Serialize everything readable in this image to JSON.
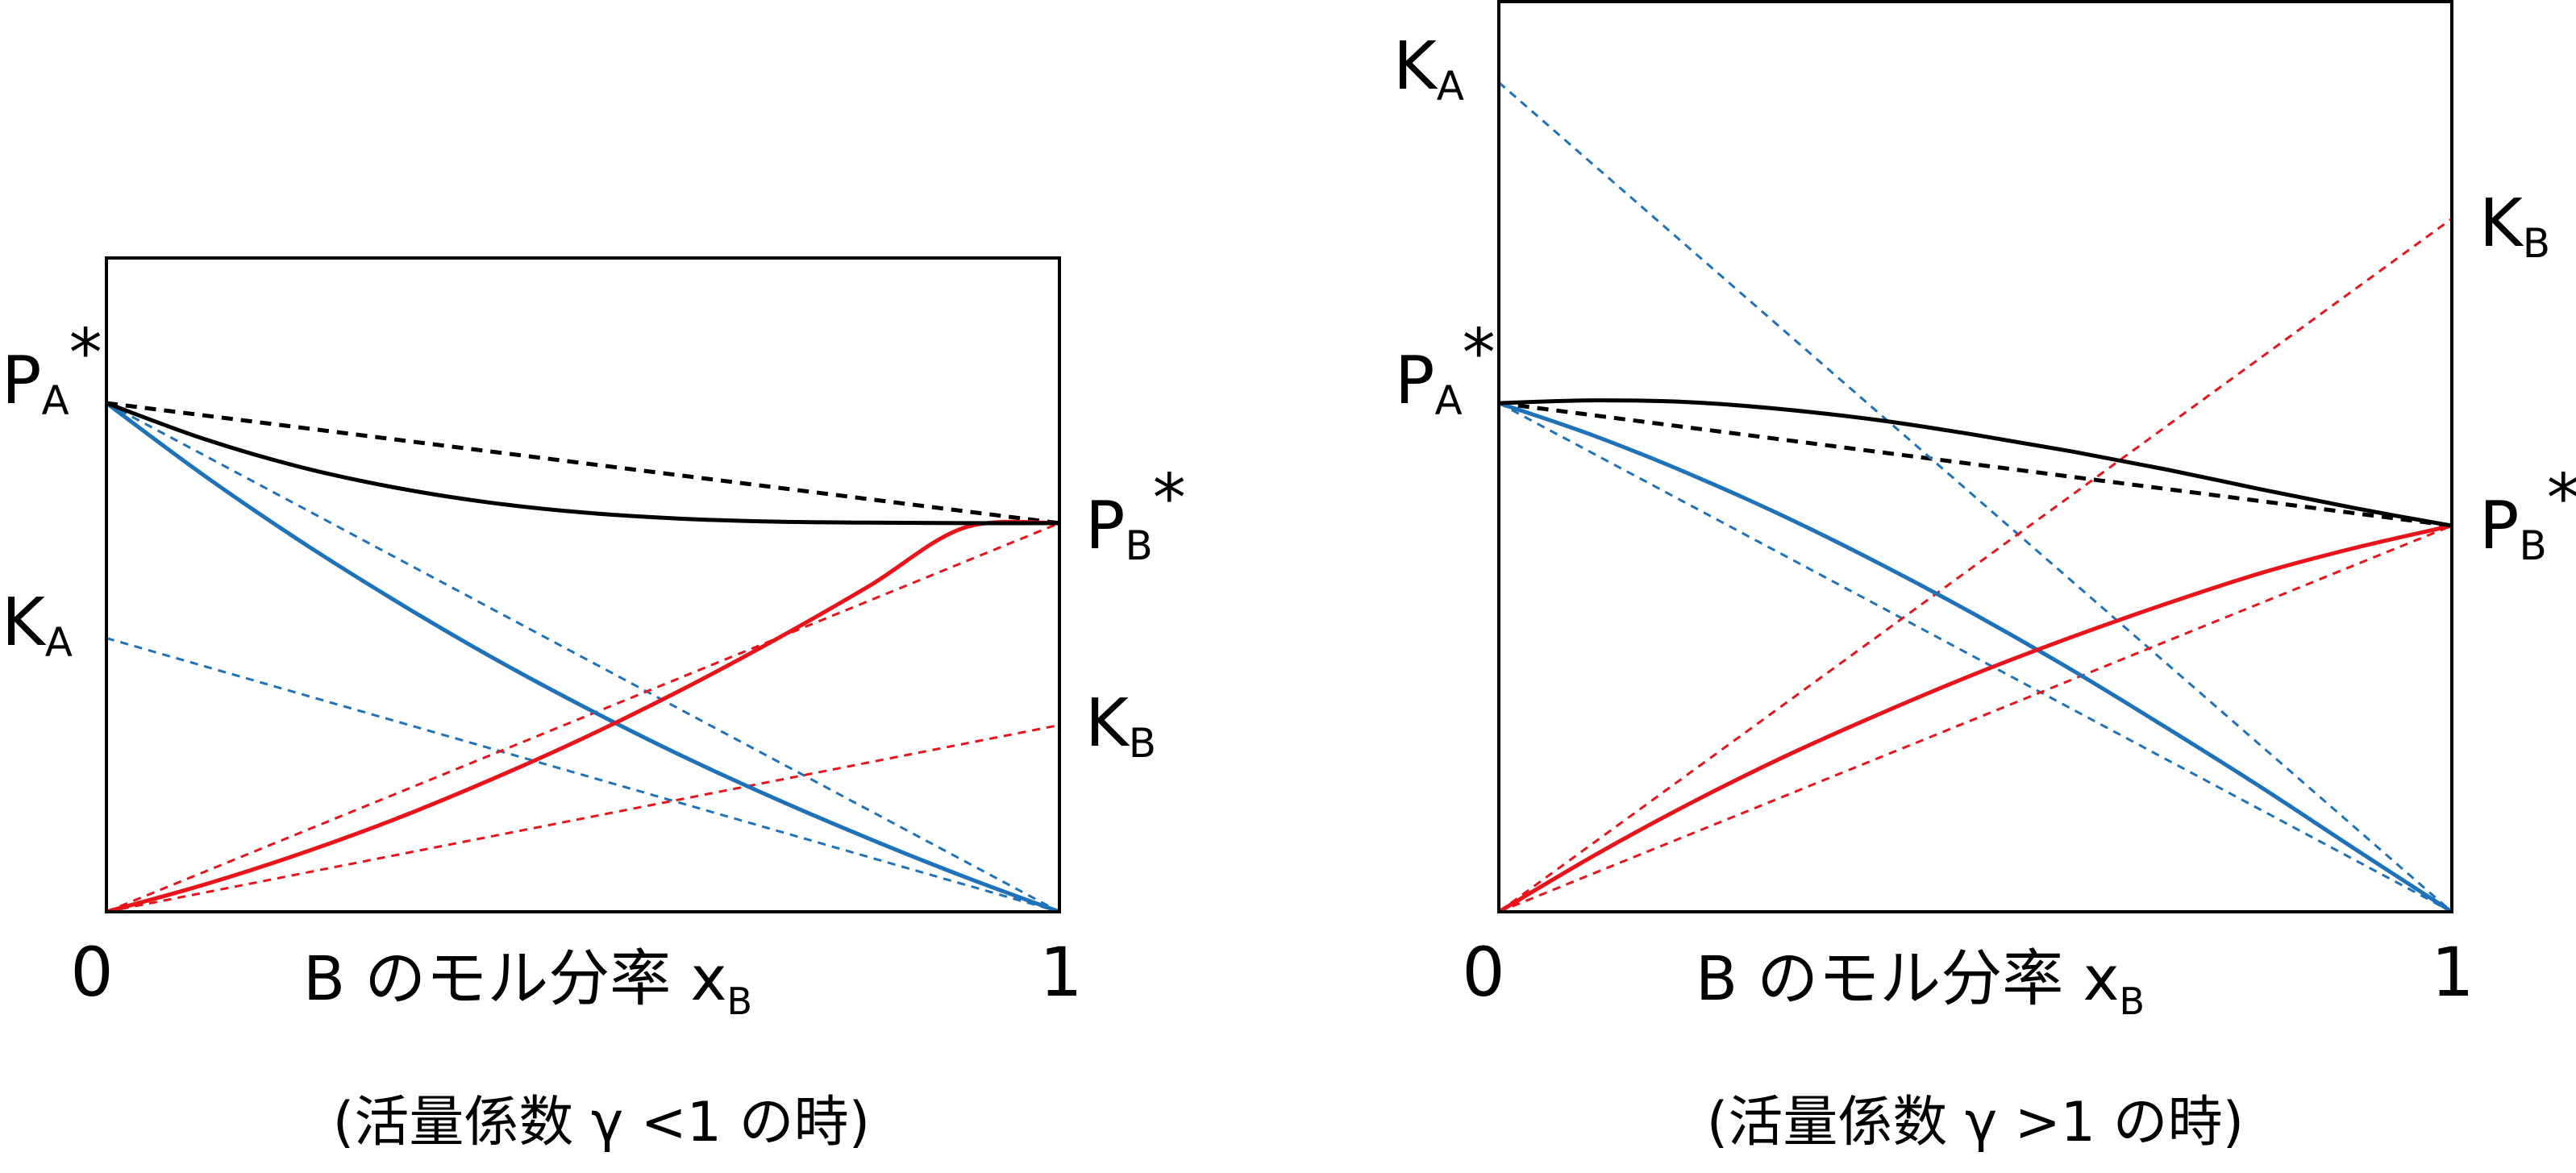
{
  "colors": {
    "total": "#000000",
    "component_a": "#1f72b8",
    "component_b": "#e8141c",
    "frame": "#000000"
  },
  "line_styles": {
    "solid": "actual vapor pressure curve",
    "dashed": "ideal (Raoult) / Henry reference line"
  },
  "panels": [
    {
      "x_label": {
        "main": "B のモル分率 x",
        "sub": "B"
      },
      "x_tick_left": "0",
      "x_tick_right": "1",
      "caption": "(活量係数 γ <1 の時)",
      "labels": {
        "pa_star": {
          "main": "P",
          "sub": "A",
          "sup": "*"
        },
        "pb_star": {
          "main": "P",
          "sub": "B",
          "sup": "*"
        },
        "ka": {
          "main": "K",
          "sub": "A"
        },
        "kb": {
          "main": "K",
          "sub": "B"
        }
      },
      "values": {
        "pa_star": 1.0,
        "pb_star": 0.764,
        "ka": 0.538,
        "kb": 0.367,
        "curve_total": [
          [
            0,
            1.0
          ],
          [
            0.1,
            0.931
          ],
          [
            0.2,
            0.876
          ],
          [
            0.3,
            0.835
          ],
          [
            0.4,
            0.805
          ],
          [
            0.5,
            0.785
          ],
          [
            0.6,
            0.773
          ],
          [
            0.7,
            0.767
          ],
          [
            0.8,
            0.765
          ],
          [
            0.9,
            0.764
          ],
          [
            1.0,
            0.764
          ]
        ],
        "curve_a": [
          [
            0,
            1.0
          ],
          [
            0.1,
            0.861
          ],
          [
            0.2,
            0.733
          ],
          [
            0.3,
            0.615
          ],
          [
            0.4,
            0.505
          ],
          [
            0.5,
            0.404
          ],
          [
            0.6,
            0.31
          ],
          [
            0.7,
            0.224
          ],
          [
            0.8,
            0.144
          ],
          [
            0.9,
            0.069
          ],
          [
            1.0,
            0.0
          ]
        ],
        "curve_b": [
          [
            0,
            0.0
          ],
          [
            0.1,
            0.052
          ],
          [
            0.2,
            0.112
          ],
          [
            0.3,
            0.18
          ],
          [
            0.4,
            0.257
          ],
          [
            0.5,
            0.341
          ],
          [
            0.6,
            0.433
          ],
          [
            0.7,
            0.533
          ],
          [
            0.8,
            0.64
          ],
          [
            0.9,
            0.755
          ],
          [
            1.0,
            0.764
          ]
        ]
      }
    },
    {
      "x_label": {
        "main": "B のモル分率 x",
        "sub": "B"
      },
      "x_tick_left": "0",
      "x_tick_right": "1",
      "caption": "(活量係数 γ >1 の時)",
      "labels": {
        "pa_star": {
          "main": "P",
          "sub": "A",
          "sup": "*"
        },
        "pb_star": {
          "main": "P",
          "sub": "B",
          "sup": "*"
        },
        "ka": {
          "main": "K",
          "sub": "A"
        },
        "kb": {
          "main": "K",
          "sub": "B"
        }
      },
      "values": {
        "pa_star": 0.56,
        "pb_star": 0.425,
        "ka": 0.913,
        "kb": 0.763,
        "curve_total": [
          [
            0,
            0.56
          ],
          [
            0.1,
            0.563
          ],
          [
            0.2,
            0.561
          ],
          [
            0.3,
            0.553
          ],
          [
            0.4,
            0.541
          ],
          [
            0.5,
            0.525
          ],
          [
            0.6,
            0.507
          ],
          [
            0.7,
            0.487
          ],
          [
            0.8,
            0.465
          ],
          [
            0.9,
            0.444
          ],
          [
            1.0,
            0.425
          ]
        ],
        "curve_a": [
          [
            0,
            0.56
          ],
          [
            0.1,
            0.524
          ],
          [
            0.2,
            0.482
          ],
          [
            0.3,
            0.435
          ],
          [
            0.4,
            0.383
          ],
          [
            0.5,
            0.327
          ],
          [
            0.6,
            0.267
          ],
          [
            0.7,
            0.203
          ],
          [
            0.8,
            0.137
          ],
          [
            0.9,
            0.068
          ],
          [
            1.0,
            0.0
          ]
        ],
        "curve_b": [
          [
            0,
            0.0
          ],
          [
            0.1,
            0.062
          ],
          [
            0.2,
            0.119
          ],
          [
            0.3,
            0.171
          ],
          [
            0.4,
            0.218
          ],
          [
            0.5,
            0.262
          ],
          [
            0.6,
            0.302
          ],
          [
            0.7,
            0.339
          ],
          [
            0.8,
            0.373
          ],
          [
            0.9,
            0.401
          ],
          [
            1.0,
            0.425
          ]
        ]
      }
    }
  ]
}
